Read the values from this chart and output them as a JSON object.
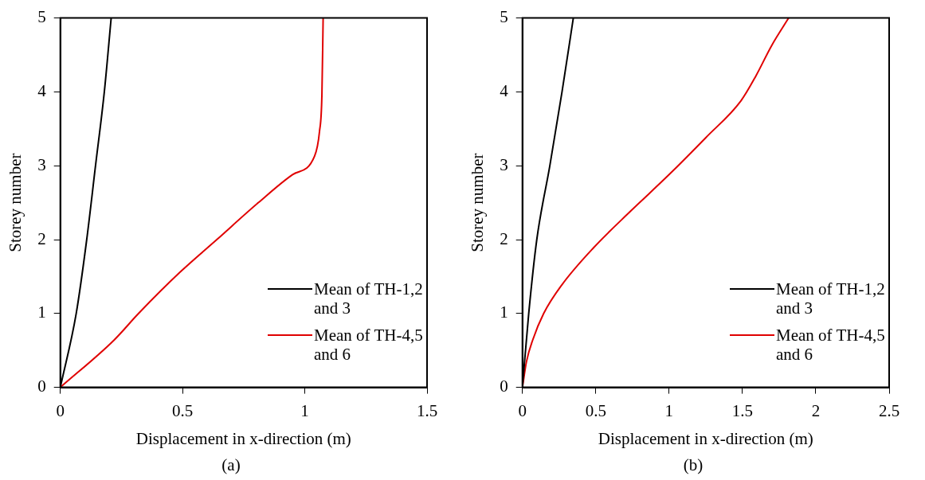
{
  "chart_data": [
    {
      "type": "line",
      "xlabel": "Displacement in x-direction (m)",
      "ylabel": "Storey number",
      "xlim": [
        0,
        1.5
      ],
      "xticks": [
        0,
        0.5,
        1,
        1.5
      ],
      "ylim": [
        0,
        5
      ],
      "yticks": [
        0,
        1,
        2,
        3,
        4,
        5
      ],
      "grid": false,
      "legend": "bottom right",
      "marker": "none",
      "line_style": "solid",
      "annotations": [
        "(a)"
      ],
      "series": [
        {
          "name": "Mean of TH-1,2 and 3",
          "color": "#000000",
          "x": [
            0,
            0.065,
            0.108,
            0.144,
            0.18,
            0.208
          ],
          "values": [
            0,
            1,
            2,
            3,
            4,
            5
          ]
        },
        {
          "name": "Mean of TH-4,5 and 6",
          "color": "#e00000",
          "x": [
            0,
            0.22,
            0.32,
            0.49,
            0.64,
            0.81,
            0.95,
            1.04,
            1.06,
            1.07,
            1.075
          ],
          "values": [
            0,
            0.64,
            1,
            1.56,
            2,
            2.5,
            2.88,
            3.13,
            3.46,
            3.96,
            5
          ]
        }
      ]
    },
    {
      "type": "line",
      "xlabel": "Displacement in x-direction (m)",
      "ylabel": "Storey number",
      "xlim": [
        0,
        2.5
      ],
      "xticks": [
        0,
        0.5,
        1,
        1.5,
        2,
        2.5
      ],
      "ylim": [
        0,
        5
      ],
      "yticks": [
        0,
        1,
        2,
        3,
        4,
        5
      ],
      "grid": false,
      "legend": "bottom right",
      "marker": "none",
      "line_style": "solid",
      "annotations": [
        "(b)"
      ],
      "series": [
        {
          "name": "Mean of TH-1,2 and 3",
          "color": "#000000",
          "x": [
            0,
            0.043,
            0.098,
            0.187,
            0.27,
            0.347
          ],
          "values": [
            0,
            1,
            2,
            3,
            4,
            5
          ]
        },
        {
          "name": "Mean of TH-4,5 and 6",
          "color": "#e00000",
          "x": [
            0,
            0.028,
            0.07,
            0.145,
            0.27,
            0.485,
            0.74,
            1.0,
            1.25,
            1.49,
            1.59,
            1.7,
            1.815
          ],
          "values": [
            0,
            0.35,
            0.64,
            1,
            1.39,
            1.89,
            2.39,
            2.88,
            3.38,
            3.88,
            4.21,
            4.63,
            5
          ]
        }
      ]
    }
  ]
}
